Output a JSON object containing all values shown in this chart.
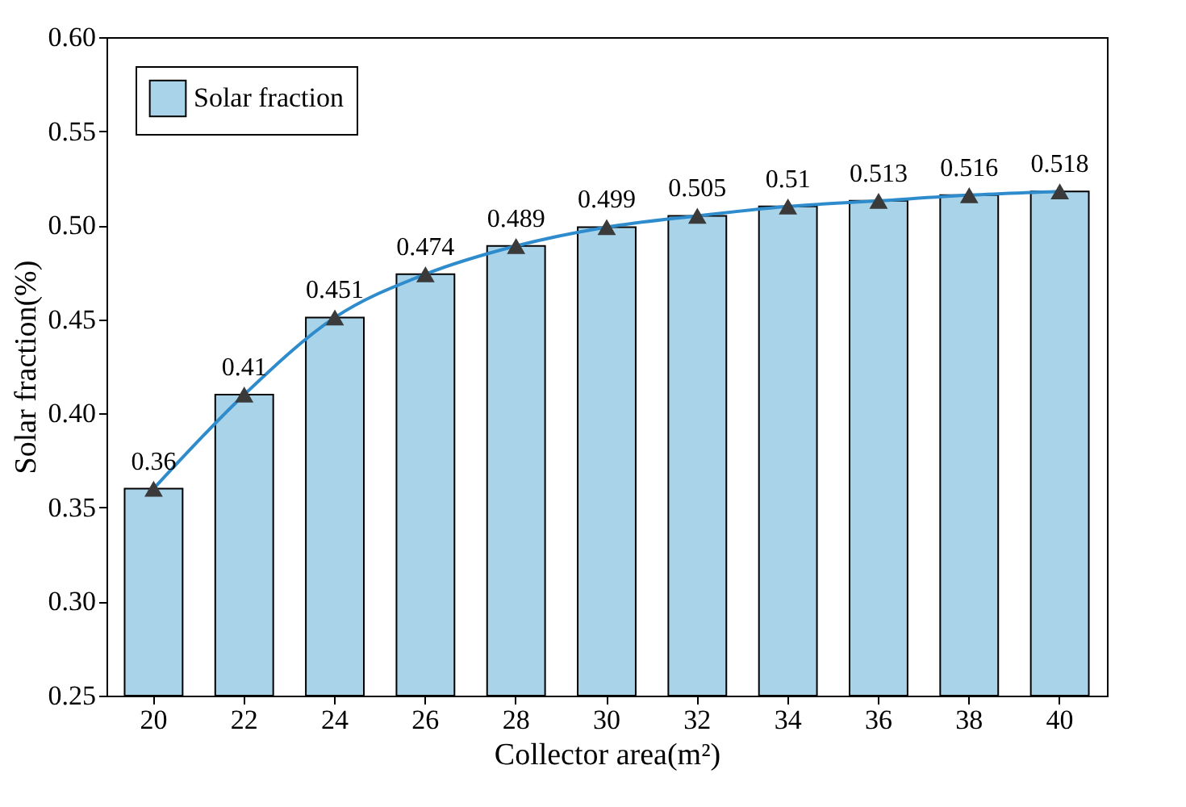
{
  "chart_data": {
    "type": "bar",
    "xlabel": "Collector area(m²)",
    "ylabel": "Solar fraction(%)",
    "categories": [
      "20",
      "22",
      "24",
      "26",
      "28",
      "30",
      "32",
      "34",
      "36",
      "38",
      "40"
    ],
    "series": [
      {
        "name": "Solar fraction",
        "color": "#a9d3e8",
        "values": [
          0.36,
          0.41,
          0.451,
          0.474,
          0.489,
          0.499,
          0.505,
          0.51,
          0.513,
          0.516,
          0.518
        ]
      },
      {
        "type": "line",
        "color": "#2f8ccc",
        "marker": "triangle",
        "line_style": "solid",
        "values": [
          0.36,
          0.41,
          0.451,
          0.474,
          0.489,
          0.499,
          0.505,
          0.51,
          0.513,
          0.516,
          0.518
        ],
        "value_labels": [
          "0.36",
          "0.41",
          "0.451",
          "0.474",
          "0.489",
          "0.499",
          "0.505",
          "0.51",
          "0.513",
          "0.516",
          "0.518"
        ]
      }
    ],
    "ylim": [
      0.25,
      0.6
    ],
    "yticks": [
      {
        "value": 0.25,
        "label": "0.25"
      },
      {
        "value": 0.3,
        "label": "0.30"
      },
      {
        "value": 0.35,
        "label": "0.35"
      },
      {
        "value": 0.4,
        "label": "0.40"
      },
      {
        "value": 0.45,
        "label": "0.45"
      },
      {
        "value": 0.5,
        "label": "0.50"
      },
      {
        "value": 0.55,
        "label": "0.55"
      },
      {
        "value": 0.6,
        "label": "0.60"
      }
    ],
    "legend": "top left",
    "grid": false
  }
}
